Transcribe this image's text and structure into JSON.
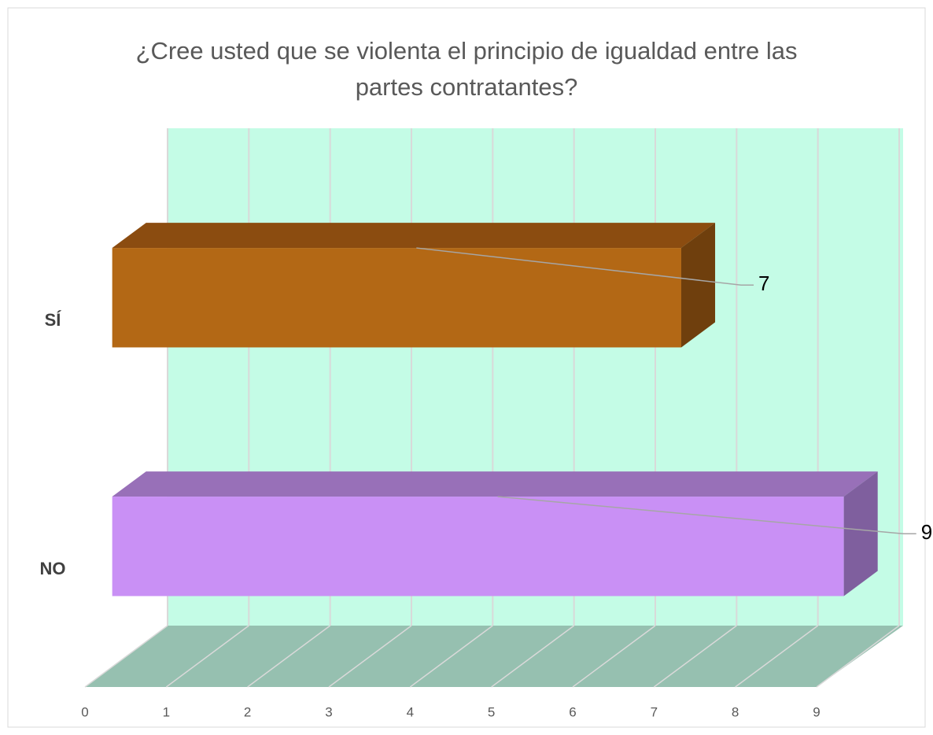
{
  "chart_data": {
    "type": "bar3d_horizontal",
    "title": "¿Cree usted que se violenta el principio de igualdad entre las partes contratantes?",
    "categories": [
      "SÍ",
      "NO"
    ],
    "values": [
      7,
      9
    ],
    "colors": [
      {
        "front": "#b36815",
        "top": "#8b4c10",
        "side": "#6f3f0d"
      },
      {
        "front": "#c990f5",
        "top": "#9870b8",
        "side": "#7f5f9e"
      }
    ],
    "xlim": [
      0,
      9
    ],
    "xticks": [
      0,
      1,
      2,
      3,
      4,
      5,
      6,
      7,
      8,
      9
    ],
    "grid": true,
    "wall_color": "#c4fce6",
    "floor_color": "#96c0b0"
  }
}
